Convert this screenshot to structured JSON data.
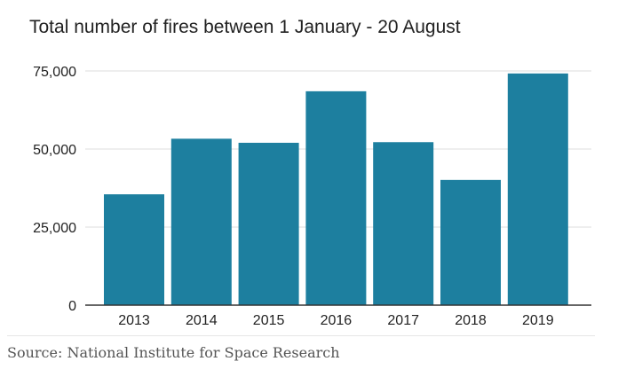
{
  "chart_data": {
    "type": "bar",
    "title": "Total number of fires between 1 January - 20 August",
    "categories": [
      "2013",
      "2014",
      "2015",
      "2016",
      "2017",
      "2018",
      "2019"
    ],
    "values": [
      35500,
      53300,
      52000,
      68500,
      52200,
      40100,
      74200
    ],
    "y_ticks": [
      0,
      25000,
      50000,
      75000
    ],
    "y_tick_labels": [
      "0",
      "25,000",
      "50,000",
      "75,000"
    ],
    "ylim": [
      0,
      75000
    ],
    "xlabel": "",
    "ylabel": "",
    "grid": "horizontal",
    "bar_color": "#1d7f9f"
  },
  "source": "Source: National Institute for Space Research"
}
